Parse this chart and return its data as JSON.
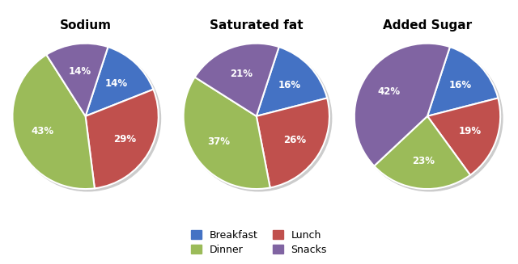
{
  "charts": [
    {
      "title": "Sodium",
      "values": [
        14,
        29,
        43,
        14
      ],
      "labels": [
        "14%",
        "29%",
        "43%",
        "14%"
      ],
      "startangle": 72
    },
    {
      "title": "Saturated fat",
      "values": [
        16,
        26,
        37,
        21
      ],
      "labels": [
        "16%",
        "26%",
        "37%",
        "21%"
      ],
      "startangle": 72
    },
    {
      "title": "Added Sugar",
      "values": [
        16,
        19,
        23,
        42
      ],
      "labels": [
        "16%",
        "19%",
        "23%",
        "42%"
      ],
      "startangle": 72
    }
  ],
  "colors": [
    "#4472C4",
    "#C0504D",
    "#9BBB59",
    "#8064A2"
  ],
  "background_color": "#FFFFFF",
  "label_fontsize": 8.5,
  "title_fontsize": 11,
  "legend_row1": [
    [
      "Breakfast",
      "#4472C4"
    ],
    [
      "Dinner",
      "#9BBB59"
    ]
  ],
  "legend_row2": [
    [
      "Lunch",
      "#C0504D"
    ],
    [
      "Snacks",
      "#8064A2"
    ]
  ]
}
